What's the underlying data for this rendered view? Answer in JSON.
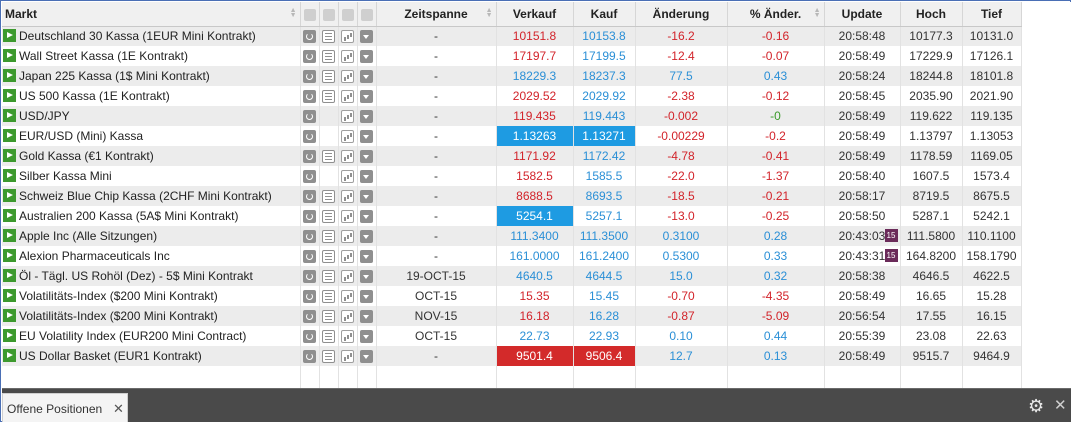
{
  "table": {
    "headers": {
      "markt": "Markt",
      "zeitspanne": "Zeitspanne",
      "verkauf": "Verkauf",
      "kauf": "Kauf",
      "aenderung": "Änderung",
      "pct": "% Änder.",
      "update": "Update",
      "hoch": "Hoch",
      "tief": "Tief"
    },
    "rows": [
      {
        "markt": "Deutschland 30 Kassa (1EUR Mini Kontrakt)",
        "news": true,
        "zeit": "-",
        "verkauf": "10151.8",
        "kauf": "10153.8",
        "aenderung": "-16.2",
        "pct": "-0.16",
        "update": "20:58:48",
        "hoch": "10177.3",
        "tief": "10131.0",
        "dir": "neg"
      },
      {
        "markt": "Wall Street Kassa (1E Kontrakt)",
        "news": true,
        "zeit": "-",
        "verkauf": "17197.7",
        "kauf": "17199.5",
        "aenderung": "-12.4",
        "pct": "-0.07",
        "update": "20:58:49",
        "hoch": "17229.9",
        "tief": "17126.1",
        "dir": "neg"
      },
      {
        "markt": "Japan 225 Kassa (1$ Mini Kontrakt)",
        "news": true,
        "zeit": "-",
        "verkauf": "18229.3",
        "kauf": "18237.3",
        "aenderung": "77.5",
        "pct": "0.43",
        "update": "20:58:24",
        "hoch": "18244.8",
        "tief": "18101.8",
        "dir": "pos"
      },
      {
        "markt": "US 500 Kassa (1E Kontrakt)",
        "news": true,
        "zeit": "-",
        "verkauf": "2029.52",
        "kauf": "2029.92",
        "aenderung": "-2.38",
        "pct": "-0.12",
        "update": "20:58:45",
        "hoch": "2035.90",
        "tief": "2021.90",
        "dir": "neg"
      },
      {
        "markt": "USD/JPY",
        "news": false,
        "zeit": "-",
        "verkauf": "119.435",
        "kauf": "119.443",
        "aenderung": "-0.002",
        "pct": "-0",
        "update": "20:58:49",
        "hoch": "119.622",
        "tief": "119.135",
        "dir": "neg",
        "pctdir": "zero"
      },
      {
        "markt": "EUR/USD (Mini) Kassa",
        "news": false,
        "zeit": "-",
        "verkauf": "1.13263",
        "kauf": "1.13271",
        "aenderung": "-0.00229",
        "pct": "-0.2",
        "update": "20:58:49",
        "hoch": "1.13797",
        "tief": "1.13053",
        "dir": "neg",
        "hl": "blue-both"
      },
      {
        "markt": "Gold Kassa (€1 Kontrakt)",
        "news": true,
        "zeit": "-",
        "verkauf": "1171.92",
        "kauf": "1172.42",
        "aenderung": "-4.78",
        "pct": "-0.41",
        "update": "20:58:49",
        "hoch": "1178.59",
        "tief": "1169.05",
        "dir": "neg"
      },
      {
        "markt": "Silber Kassa Mini",
        "news": false,
        "zeit": "-",
        "verkauf": "1582.5",
        "kauf": "1585.5",
        "aenderung": "-22.0",
        "pct": "-1.37",
        "update": "20:58:40",
        "hoch": "1607.5",
        "tief": "1573.4",
        "dir": "neg"
      },
      {
        "markt": "Schweiz Blue Chip Kassa (2CHF Mini Kontrakt)",
        "news": true,
        "zeit": "-",
        "verkauf": "8688.5",
        "kauf": "8693.5",
        "aenderung": "-18.5",
        "pct": "-0.21",
        "update": "20:58:17",
        "hoch": "8719.5",
        "tief": "8675.5",
        "dir": "neg"
      },
      {
        "markt": "Australien 200 Kassa (5A$ Mini Kontrakt)",
        "news": true,
        "zeit": "-",
        "verkauf": "5254.1",
        "kauf": "5257.1",
        "aenderung": "-13.0",
        "pct": "-0.25",
        "update": "20:58:50",
        "hoch": "5287.1",
        "tief": "5242.1",
        "dir": "neg",
        "hl": "blue-sell"
      },
      {
        "markt": "Apple Inc (Alle Sitzungen)",
        "news": true,
        "zeit": "-",
        "verkauf": "111.3400",
        "kauf": "111.3500",
        "aenderung": "0.3100",
        "pct": "0.28",
        "update": "20:43:03",
        "hoch": "111.5800",
        "tief": "110.1100",
        "dir": "pos",
        "badge": "15"
      },
      {
        "markt": "Alexion Pharmaceuticals Inc",
        "news": true,
        "zeit": "-",
        "verkauf": "161.0000",
        "kauf": "161.2400",
        "aenderung": "0.5300",
        "pct": "0.33",
        "update": "20:43:31",
        "hoch": "164.8200",
        "tief": "158.1790",
        "dir": "pos",
        "badge": "15"
      },
      {
        "markt": "Öl - Tägl. US Rohöl (Dez) - 5$ Mini Kontrakt",
        "news": true,
        "zeit": "19-OCT-15",
        "verkauf": "4640.5",
        "kauf": "4644.5",
        "aenderung": "15.0",
        "pct": "0.32",
        "update": "20:58:38",
        "hoch": "4646.5",
        "tief": "4622.5",
        "dir": "pos"
      },
      {
        "markt": "Volatilitäts-Index ($200 Mini Kontrakt)",
        "news": true,
        "zeit": "OCT-15",
        "verkauf": "15.35",
        "kauf": "15.45",
        "aenderung": "-0.70",
        "pct": "-4.35",
        "update": "20:58:49",
        "hoch": "16.65",
        "tief": "15.28",
        "dir": "neg"
      },
      {
        "markt": "Volatilitäts-Index ($200 Mini Kontrakt)",
        "news": true,
        "zeit": "NOV-15",
        "verkauf": "16.18",
        "kauf": "16.28",
        "aenderung": "-0.87",
        "pct": "-5.09",
        "update": "20:56:54",
        "hoch": "17.55",
        "tief": "16.15",
        "dir": "neg"
      },
      {
        "markt": "EU Volatility Index (EUR200 Mini Contract)",
        "news": true,
        "zeit": "OCT-15",
        "verkauf": "22.73",
        "kauf": "22.93",
        "aenderung": "0.10",
        "pct": "0.44",
        "update": "20:55:39",
        "hoch": "23.08",
        "tief": "22.63",
        "dir": "pos"
      },
      {
        "markt": "US Dollar Basket (EUR1 Kontrakt)",
        "news": true,
        "zeit": "-",
        "verkauf": "9501.4",
        "kauf": "9506.4",
        "aenderung": "12.7",
        "pct": "0.13",
        "update": "20:58:49",
        "hoch": "9515.7",
        "tief": "9464.9",
        "dir": "pos",
        "hl": "red-both"
      }
    ]
  },
  "tabs": [
    {
      "label": "Offene Positionen",
      "close": "✕"
    }
  ],
  "footer": {
    "settings_icon": "gear-icon",
    "close_glyph": "✕"
  },
  "colors": {
    "negative": "#d2232a",
    "positive": "#2a8fd6",
    "highlight_blue": "#1e9be2",
    "highlight_red": "#d32a2a",
    "play": "#3d9a2e",
    "badge": "#6b2b5a"
  }
}
